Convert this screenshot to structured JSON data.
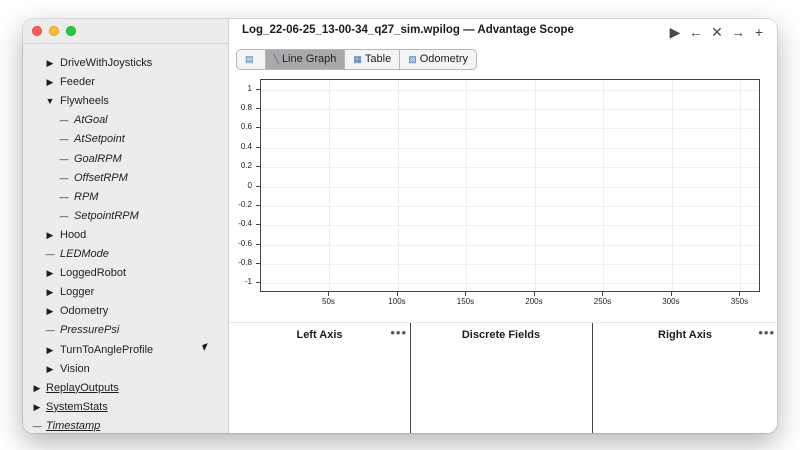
{
  "window": {
    "title": "Log_22-06-25_13-00-34_q27_sim.wpilog — Advantage Scope",
    "controls": [
      "play-icon",
      "arrow-left-icon",
      "close-icon",
      "arrow-right-icon",
      "plus-icon"
    ]
  },
  "sidebar": {
    "items": [
      {
        "label": "DriveWithJoysticks",
        "marker": "▶",
        "level": 1,
        "style": ""
      },
      {
        "label": "Feeder",
        "marker": "▶",
        "level": 1,
        "style": ""
      },
      {
        "label": "Flywheels",
        "marker": "▼",
        "level": 1,
        "style": ""
      },
      {
        "label": "AtGoal",
        "marker": "—",
        "level": 2,
        "style": "italic"
      },
      {
        "label": "AtSetpoint",
        "marker": "—",
        "level": 2,
        "style": "italic"
      },
      {
        "label": "GoalRPM",
        "marker": "—",
        "level": 2,
        "style": "italic"
      },
      {
        "label": "OffsetRPM",
        "marker": "—",
        "level": 2,
        "style": "italic"
      },
      {
        "label": "RPM",
        "marker": "—",
        "level": 2,
        "style": "italic"
      },
      {
        "label": "SetpointRPM",
        "marker": "—",
        "level": 2,
        "style": "italic"
      },
      {
        "label": "Hood",
        "marker": "▶",
        "level": 1,
        "style": ""
      },
      {
        "label": "LEDMode",
        "marker": "—",
        "level": 1,
        "style": "italic"
      },
      {
        "label": "LoggedRobot",
        "marker": "▶",
        "level": 1,
        "style": ""
      },
      {
        "label": "Logger",
        "marker": "▶",
        "level": 1,
        "style": ""
      },
      {
        "label": "Odometry",
        "marker": "▶",
        "level": 1,
        "style": ""
      },
      {
        "label": "PressurePsi",
        "marker": "—",
        "level": 1,
        "style": "italic"
      },
      {
        "label": "TurnToAngleProfile",
        "marker": "▶",
        "level": 1,
        "style": ""
      },
      {
        "label": "Vision",
        "marker": "▶",
        "level": 1,
        "style": ""
      },
      {
        "label": "ReplayOutputs",
        "marker": "▶",
        "level": 0,
        "style": "underline"
      },
      {
        "label": "SystemStats",
        "marker": "▶",
        "level": 0,
        "style": "underline"
      },
      {
        "label": "Timestamp",
        "marker": "—",
        "level": 0,
        "style": "italic underline"
      }
    ]
  },
  "tabs": [
    {
      "label": "",
      "icon": "book-icon",
      "active": false
    },
    {
      "label": "Line Graph",
      "icon": "line-graph-icon",
      "active": true
    },
    {
      "label": "Table",
      "icon": "table-icon",
      "active": false
    },
    {
      "label": "Odometry",
      "icon": "map-icon",
      "active": false
    }
  ],
  "chart_data": {
    "type": "line",
    "title": "",
    "xlabel": "",
    "ylabel": "",
    "xlim": [
      0,
      365
    ],
    "ylim": [
      -1.1,
      1.1
    ],
    "yticks": [
      "1",
      "0.8",
      "0.6",
      "0.4",
      "0.2",
      "0",
      "-0.2",
      "-0.4",
      "-0.6",
      "-0.8",
      "-1"
    ],
    "ytick_values": [
      1,
      0.8,
      0.6,
      0.4,
      0.2,
      0,
      -0.2,
      -0.4,
      -0.6,
      -0.8,
      -1
    ],
    "xticks": [
      "50s",
      "100s",
      "150s",
      "200s",
      "250s",
      "300s",
      "350s"
    ],
    "xtick_values": [
      50,
      100,
      150,
      200,
      250,
      300,
      350
    ],
    "grid": true,
    "series": []
  },
  "panels": {
    "left": {
      "title": "Left Axis",
      "menu": "•••"
    },
    "discrete": {
      "title": "Discrete Fields"
    },
    "right": {
      "title": "Right Axis",
      "menu": "•••"
    }
  }
}
